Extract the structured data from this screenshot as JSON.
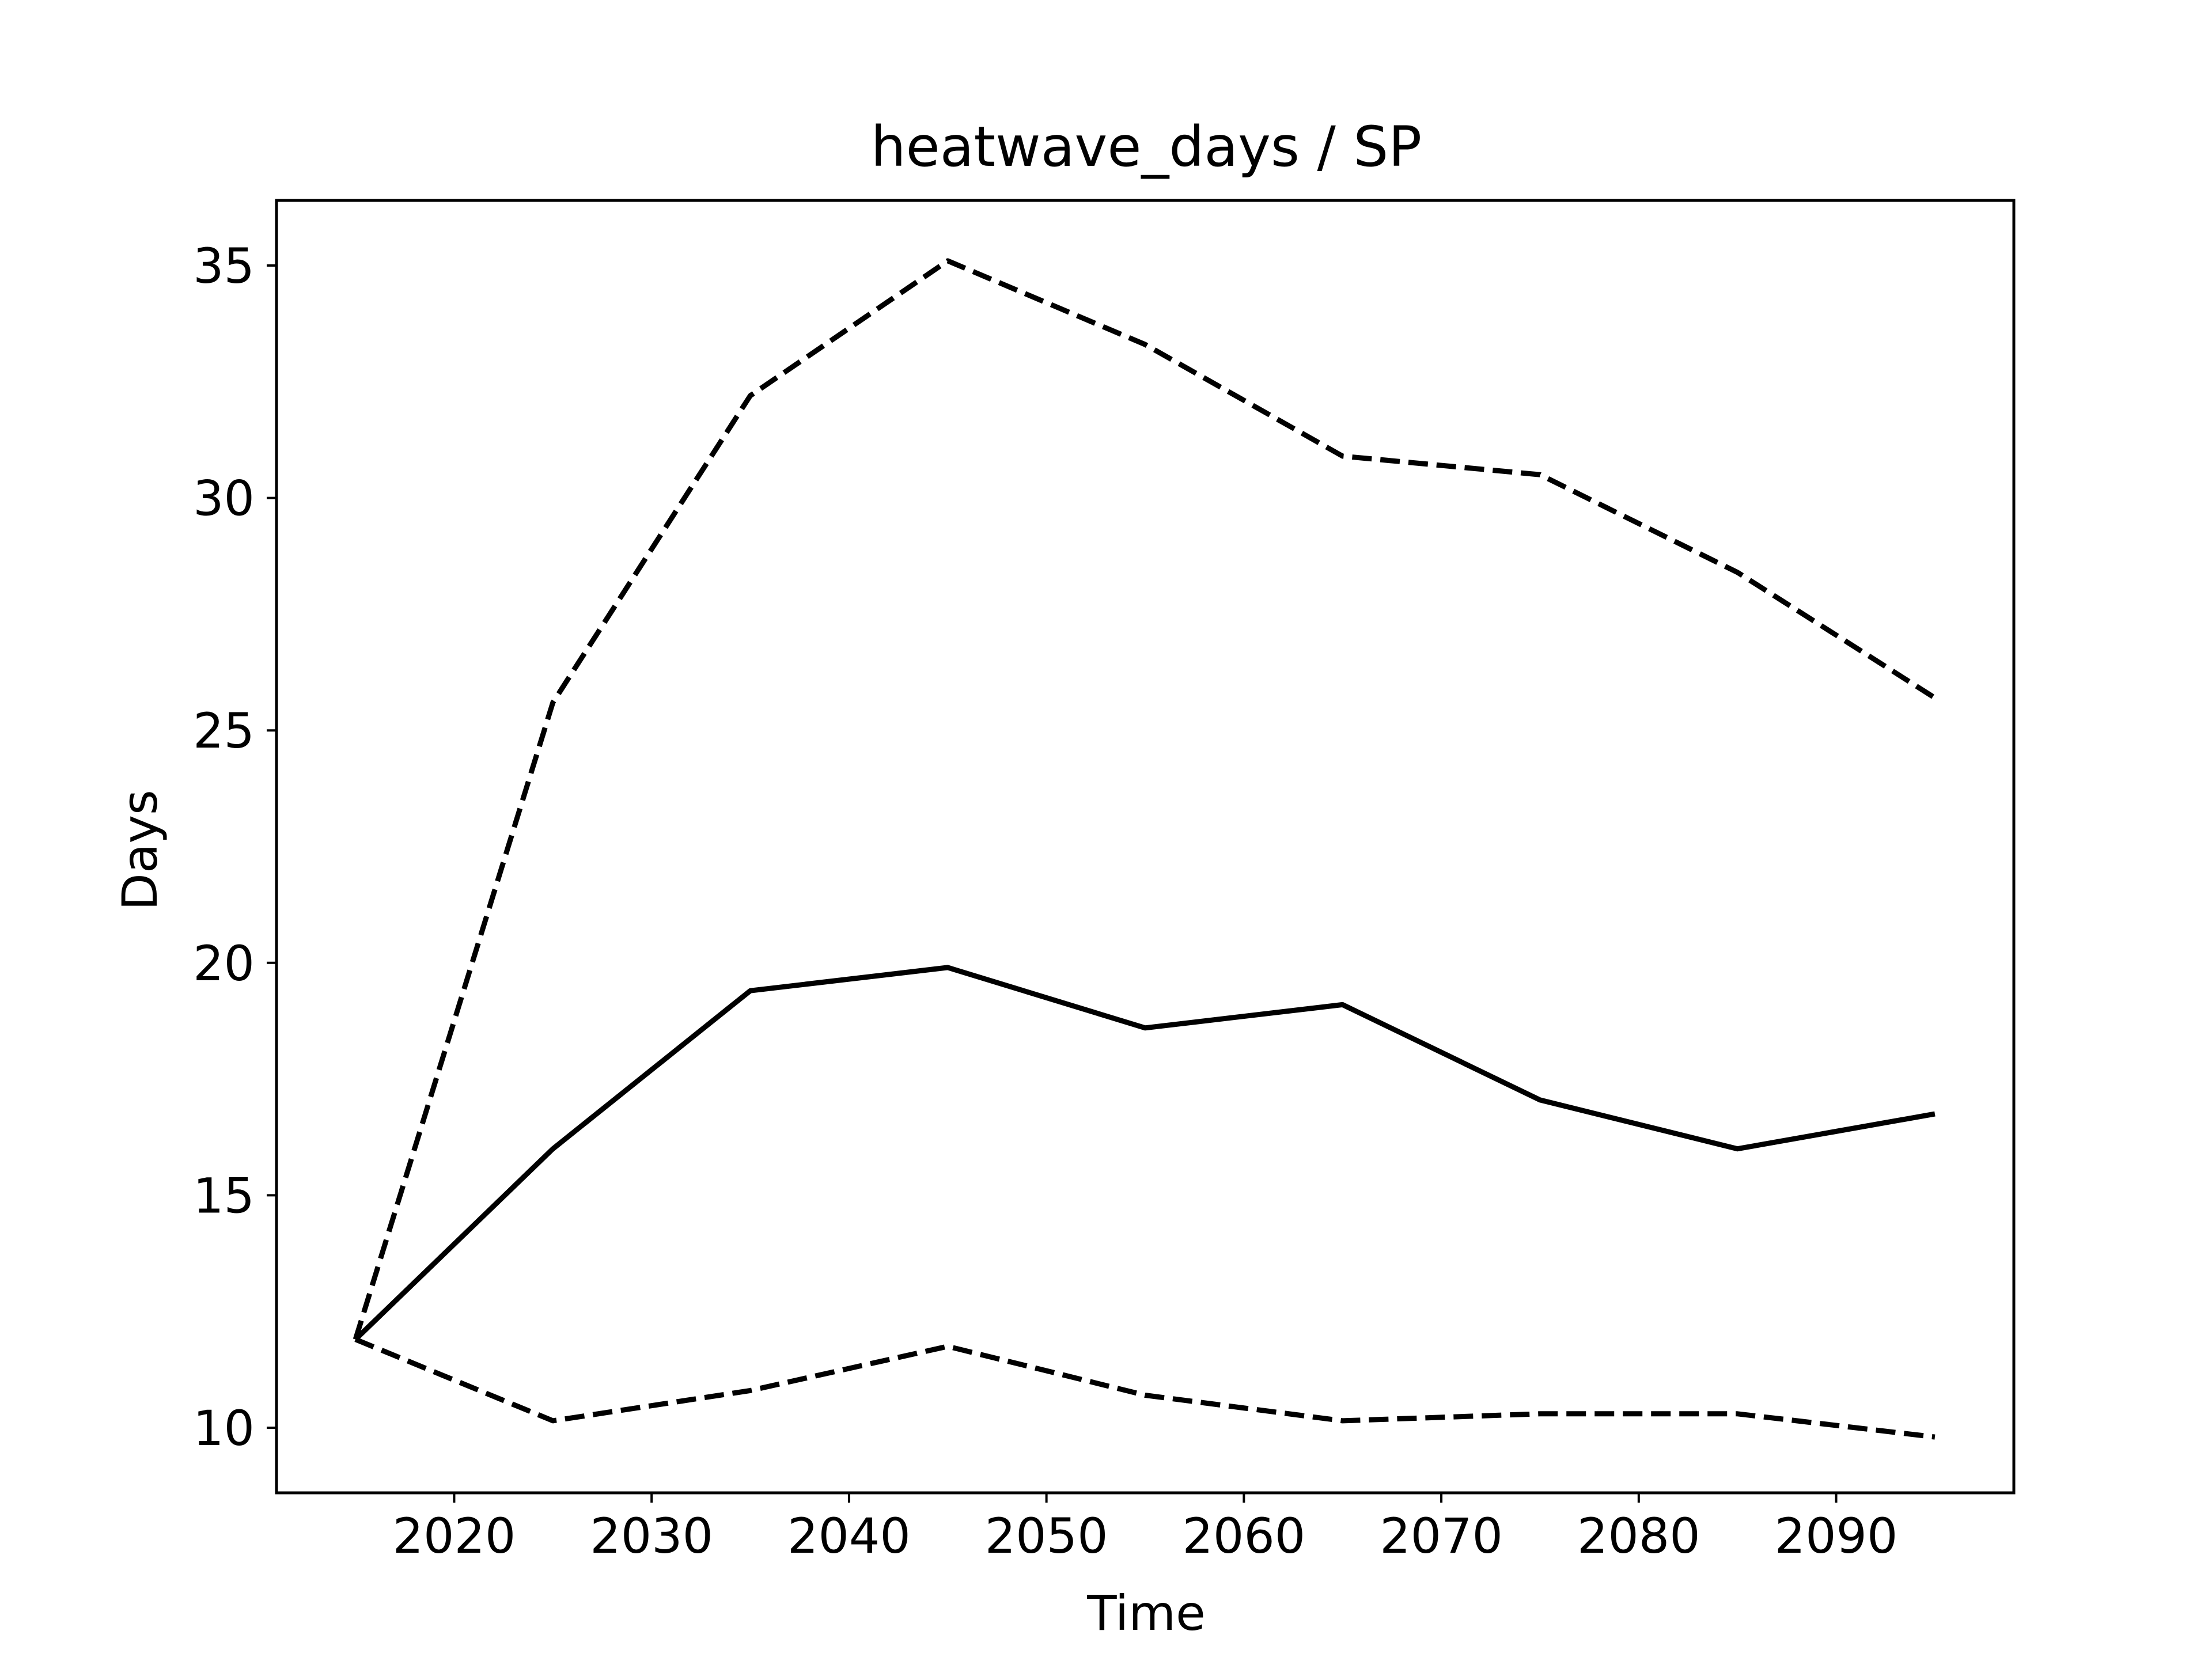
{
  "chart_data": {
    "type": "line",
    "title": "heatwave_days / SP",
    "xlabel": "Time",
    "ylabel": "Days",
    "xlim": [
      2011,
      2099
    ],
    "ylim": [
      8.6,
      36.4
    ],
    "xticks": [
      2020,
      2030,
      2040,
      2050,
      2060,
      2070,
      2080,
      2090
    ],
    "yticks": [
      10,
      15,
      20,
      25,
      30,
      35
    ],
    "grid": false,
    "legend": "none",
    "x": [
      2015,
      2025,
      2035,
      2045,
      2055,
      2065,
      2075,
      2085,
      2095
    ],
    "series": [
      {
        "style": "solid",
        "color": "#000000",
        "values": [
          11.9,
          16.0,
          19.4,
          19.9,
          18.6,
          19.1,
          17.05,
          16.0,
          16.75
        ]
      },
      {
        "style": "dashed",
        "color": "#000000",
        "values": [
          11.9,
          25.6,
          32.2,
          35.1,
          33.3,
          30.9,
          30.5,
          28.4,
          25.7
        ]
      },
      {
        "style": "dashed",
        "color": "#000000",
        "values": [
          11.9,
          10.15,
          10.8,
          11.75,
          10.7,
          10.15,
          10.3,
          10.3,
          9.8
        ]
      }
    ]
  }
}
